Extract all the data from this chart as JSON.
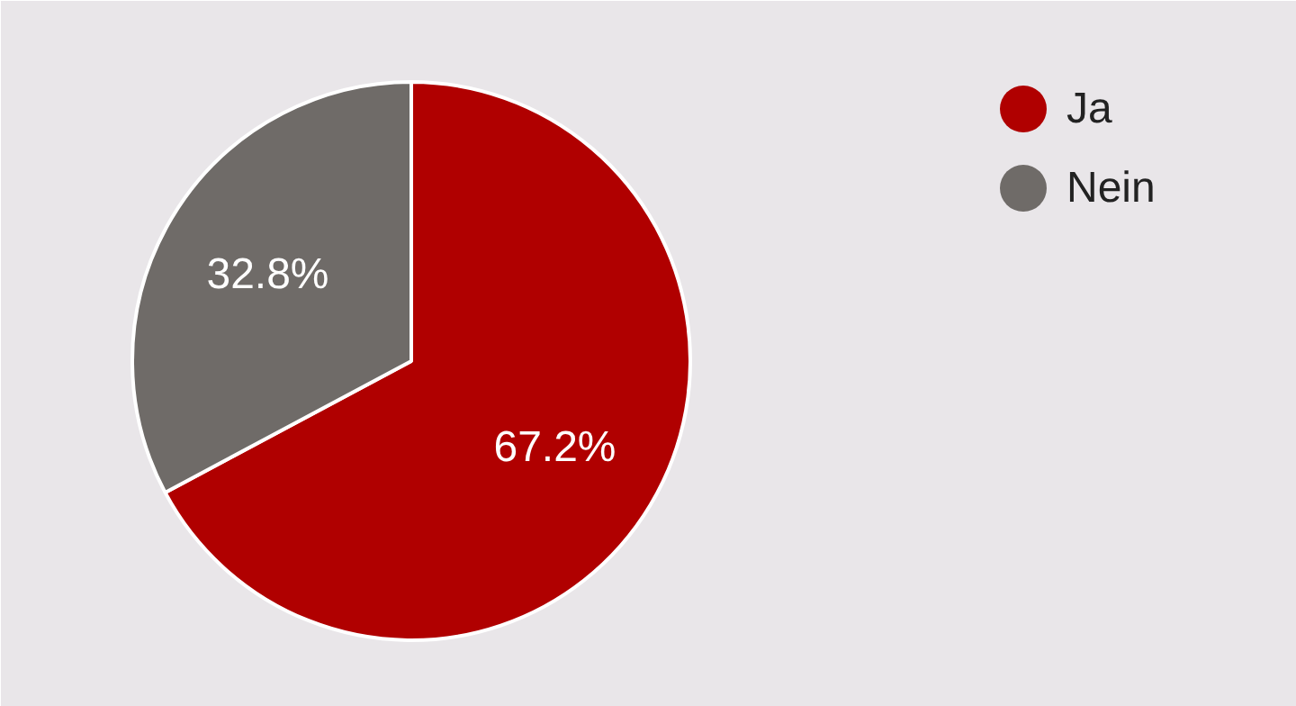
{
  "chart_data": {
    "type": "pie",
    "categories": [
      "Ja",
      "Nein"
    ],
    "values": [
      67.2,
      32.8
    ],
    "colors": [
      "#b00000",
      "#6f6b68"
    ],
    "value_labels": [
      "67.2%",
      "32.8%"
    ],
    "legend": "top right"
  }
}
